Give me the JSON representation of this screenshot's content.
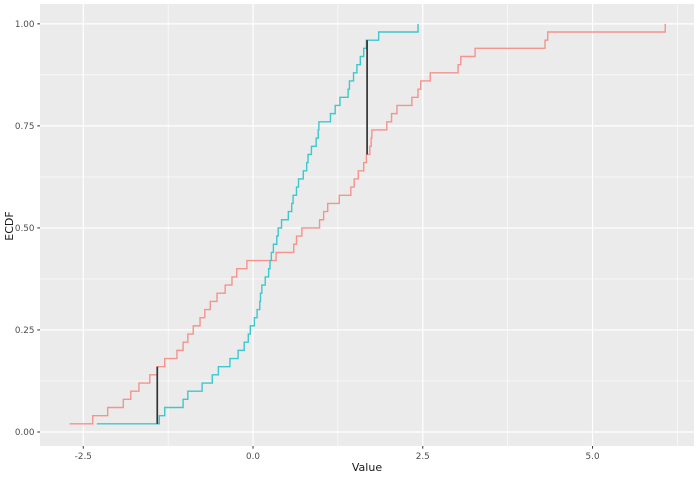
{
  "chart_data": {
    "type": "line",
    "subtype": "ecdf-step",
    "title": "",
    "xlabel": "Value",
    "ylabel": "ECDF",
    "xlim": [
      -3.137,
      6.494
    ],
    "ylim": [
      -0.0343,
      1.0486
    ],
    "grid": "on",
    "legend": "none",
    "x_major_ticks": [
      -2.5,
      0.0,
      2.5,
      5.0
    ],
    "x_tick_labels": [
      "-2.5",
      "0.0",
      "2.5",
      "5.0"
    ],
    "x_minor_ticks": [
      -1.25,
      1.25,
      3.75,
      6.25
    ],
    "y_major_ticks": [
      0.0,
      0.25,
      0.5,
      0.75,
      1.0
    ],
    "y_tick_labels": [
      "0.00",
      "0.25",
      "0.50",
      "0.75",
      "1.00"
    ],
    "y_minor_ticks": [
      0.125,
      0.375,
      0.625,
      0.875
    ],
    "series": [
      {
        "id": "red-ecdf",
        "color": "#F5938D",
        "n": 50,
        "step_height": 0.02,
        "sample_values": [
          -2.7,
          -2.36,
          -2.14,
          -1.91,
          -1.8,
          -1.68,
          -1.52,
          -1.41,
          -1.3,
          -1.12,
          -1.03,
          -0.96,
          -0.88,
          -0.78,
          -0.71,
          -0.63,
          -0.53,
          -0.41,
          -0.31,
          -0.24,
          -0.09,
          0.34,
          0.6,
          0.64,
          0.72,
          0.98,
          1.04,
          1.1,
          1.27,
          1.44,
          1.49,
          1.55,
          1.63,
          1.67,
          1.72,
          1.74,
          1.75,
          1.97,
          2.04,
          2.12,
          2.34,
          2.43,
          2.47,
          2.61,
          3.02,
          3.06,
          3.27,
          4.3,
          4.34,
          6.07
        ]
      },
      {
        "id": "cyan-ecdf",
        "color": "#3CC8CC",
        "n": 50,
        "step_height": 0.02,
        "sample_values": [
          -2.3,
          -1.38,
          -1.3,
          -1.03,
          -0.96,
          -0.75,
          -0.6,
          -0.51,
          -0.34,
          -0.22,
          -0.13,
          -0.07,
          -0.04,
          0.02,
          0.06,
          0.1,
          0.11,
          0.13,
          0.18,
          0.23,
          0.25,
          0.27,
          0.3,
          0.35,
          0.37,
          0.42,
          0.52,
          0.57,
          0.59,
          0.64,
          0.67,
          0.74,
          0.79,
          0.81,
          0.86,
          0.93,
          0.96,
          0.97,
          1.14,
          1.21,
          1.28,
          1.4,
          1.42,
          1.48,
          1.53,
          1.58,
          1.63,
          1.67,
          1.85,
          2.43
        ]
      }
    ],
    "distance_markers": [
      {
        "x": -1.41,
        "y_from": 0.02,
        "y_to": 0.16
      },
      {
        "x": 1.68,
        "y_from": 0.68,
        "y_to": 0.96
      }
    ],
    "colors": {
      "panel_background": "#EBEBEB",
      "grid_line": "#FFFFFF",
      "tick_text": "#4D4D4D",
      "axis_title_text": "#1A1A1A",
      "tick_mark": "#333333",
      "marker_line": "#333333"
    }
  }
}
